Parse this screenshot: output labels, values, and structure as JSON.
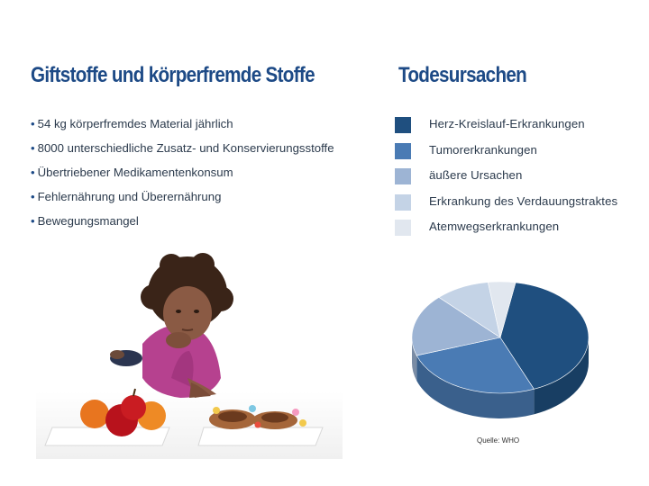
{
  "left": {
    "title": "Giftstoffe und körperfremde Stoffe",
    "bullets": [
      "54 kg körperfremdes Material jährlich",
      "8000 unterschiedliche Zusatz- und Konservierungsstoffe",
      "Übertriebener Medikamentenkonsum",
      "Fehlernährung und Überernährung",
      "Bewegungsmangel"
    ]
  },
  "right": {
    "title": "Todesursachen",
    "legend": [
      {
        "label": "Herz-Kreislauf-Erkrankungen",
        "color": "#1f4f7f"
      },
      {
        "label": "Tumorerkrankungen",
        "color": "#4a7bb4"
      },
      {
        "label": "äußere Ursachen",
        "color": "#9db4d4"
      },
      {
        "label": "Erkrankung des Verdauungstraktes",
        "color": "#c4d3e6"
      },
      {
        "label": "Atemwegserkrankungen",
        "color": "#e1e7ef"
      }
    ],
    "source": "Quelle: WHO"
  },
  "chart_data": {
    "type": "pie",
    "title": "Todesursachen",
    "categories": [
      "Herz-Kreislauf-Erkrankungen",
      "Tumorerkrankungen",
      "äußere Ursachen",
      "Erkrankung des Verdauungstraktes",
      "Atemwegserkrankungen"
    ],
    "values": [
      41,
      26,
      18,
      10,
      5
    ],
    "unit": "%",
    "legend": "right-top",
    "source": "Quelle: WHO"
  }
}
